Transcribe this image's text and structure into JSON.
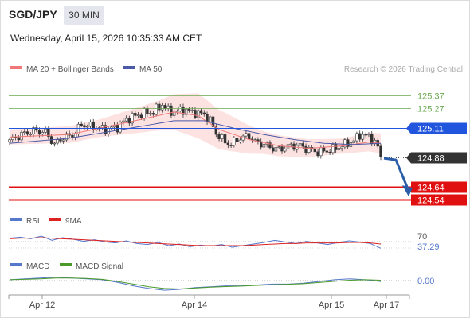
{
  "header": {
    "symbol": "SGD/JPY",
    "timeframe": "30 MIN",
    "datetime": "Wednesday, April 15, 2026 10:35:33 AM CET"
  },
  "legend": {
    "ma20_bb": "MA 20 + Bollinger Bands",
    "ma50": "MA 50",
    "credit": "Research © 2026 Trading Central"
  },
  "colors": {
    "up_candle": "#ffffff",
    "down_candle": "#333333",
    "ma20": "#f07878",
    "ma50": "#4a5aa8",
    "bollinger_fill": "#fde2e2",
    "resistance": "#6aa84f",
    "pivot": "#2255dd",
    "support": "#e01010",
    "current_price": "#333333",
    "rsi": "#5577cc",
    "rsi_9ma": "#dd2222",
    "macd": "#5577cc",
    "macd_signal": "#4a9a2a"
  },
  "chart_data": [
    {
      "type": "candlestick",
      "title": "SGD/JPY 30 MIN",
      "x_tick_labels": [
        "Apr 12",
        "Apr 14",
        "Apr 15",
        "Apr 17"
      ],
      "ylim": [
        124.47,
        125.5
      ],
      "levels": [
        {
          "name": "resistance_2",
          "value": 125.37,
          "label": "125.37",
          "kind": "resistance"
        },
        {
          "name": "resistance_1",
          "value": 125.27,
          "label": "125.27",
          "kind": "resistance"
        },
        {
          "name": "pivot",
          "value": 125.11,
          "label": "125.11",
          "kind": "pivot"
        },
        {
          "name": "current",
          "value": 124.88,
          "label": "124.88",
          "kind": "current"
        },
        {
          "name": "support_1",
          "value": 124.64,
          "label": "124.64",
          "kind": "support"
        },
        {
          "name": "support_2",
          "value": 124.54,
          "label": "124.54",
          "kind": "support"
        }
      ],
      "forecast_arrow": {
        "from": 124.87,
        "to": 124.59
      },
      "close_path": [
        [
          0,
          125.01
        ],
        [
          4,
          125.06
        ],
        [
          8,
          125.09
        ],
        [
          12,
          125.08
        ],
        [
          15,
          124.98
        ],
        [
          18,
          125.04
        ],
        [
          21,
          125.05
        ],
        [
          24,
          125.14
        ],
        [
          28,
          125.12
        ],
        [
          32,
          125.1
        ],
        [
          36,
          125.12
        ],
        [
          39,
          125.18
        ],
        [
          42,
          125.21
        ],
        [
          45,
          125.23
        ],
        [
          48,
          125.24
        ],
        [
          51,
          125.3
        ],
        [
          53,
          125.25
        ],
        [
          55,
          125.24
        ],
        [
          58,
          125.26
        ],
        [
          61,
          125.24
        ],
        [
          63,
          125.23
        ],
        [
          65,
          125.22
        ],
        [
          67,
          125.17
        ],
        [
          69,
          125.07
        ],
        [
          72,
          125.0
        ],
        [
          74,
          124.98
        ],
        [
          76,
          125.02
        ],
        [
          78,
          125.04
        ],
        [
          80,
          125.05
        ],
        [
          82,
          125.0
        ],
        [
          85,
          124.98
        ],
        [
          88,
          124.95
        ],
        [
          90,
          124.94
        ],
        [
          94,
          124.97
        ],
        [
          97,
          124.97
        ],
        [
          100,
          124.94
        ],
        [
          103,
          124.92
        ],
        [
          106,
          124.93
        ],
        [
          109,
          124.95
        ],
        [
          112,
          124.98
        ],
        [
          115,
          125.01
        ],
        [
          117,
          125.06
        ],
        [
          119,
          125.05
        ],
        [
          121,
          125.03
        ],
        [
          123,
          124.96
        ],
        [
          124,
          124.88
        ]
      ],
      "ma20_path": [
        [
          0,
          125.04
        ],
        [
          20,
          125.06
        ],
        [
          40,
          125.16
        ],
        [
          55,
          125.24
        ],
        [
          63,
          125.21
        ],
        [
          70,
          125.1
        ],
        [
          80,
          125.02
        ],
        [
          90,
          124.97
        ],
        [
          100,
          124.95
        ],
        [
          112,
          124.97
        ],
        [
          120,
          125.0
        ],
        [
          124,
          124.99
        ]
      ],
      "ma50_path": [
        [
          0,
          124.99
        ],
        [
          20,
          125.03
        ],
        [
          40,
          125.11
        ],
        [
          55,
          125.17
        ],
        [
          65,
          125.17
        ],
        [
          75,
          125.11
        ],
        [
          85,
          125.06
        ],
        [
          95,
          125.02
        ],
        [
          105,
          124.99
        ],
        [
          115,
          124.98
        ],
        [
          124,
          124.99
        ]
      ],
      "bollinger_width_path": [
        [
          0,
          0.06
        ],
        [
          30,
          0.07
        ],
        [
          50,
          0.12
        ],
        [
          63,
          0.18
        ],
        [
          72,
          0.15
        ],
        [
          85,
          0.09
        ],
        [
          110,
          0.06
        ],
        [
          124,
          0.08
        ]
      ]
    },
    {
      "type": "line",
      "title": "RSI",
      "legend": [
        "RSI",
        "9MA"
      ],
      "ylim": [
        0,
        100
      ],
      "ref_label": "70",
      "value_label": "37.29",
      "series": [
        {
          "name": "RSI",
          "values": [
            56,
            58,
            55,
            60,
            52,
            57,
            54,
            50,
            53,
            49,
            47,
            51,
            46,
            44,
            48,
            42,
            45,
            40,
            43,
            41,
            44,
            39,
            42,
            45,
            48,
            52,
            49,
            46,
            50,
            47,
            44,
            48,
            51,
            49,
            46,
            37
          ]
        },
        {
          "name": "9MA",
          "values": [
            55,
            56,
            56,
            57,
            56,
            55,
            54,
            53,
            52,
            51,
            50,
            49,
            48,
            47,
            46,
            45,
            44,
            43,
            42,
            42,
            42,
            42,
            42,
            43,
            44,
            45,
            46,
            46,
            47,
            47,
            47,
            47,
            48,
            48,
            47,
            45
          ]
        }
      ]
    },
    {
      "type": "line",
      "title": "MACD",
      "legend": [
        "MACD",
        "MACD Signal"
      ],
      "zero_label": "0.00",
      "series": [
        {
          "name": "MACD",
          "values": [
            0.01,
            0.02,
            0.03,
            0.04,
            0.03,
            0.02,
            0.01,
            -0.02,
            -0.06,
            -0.09,
            -0.11,
            -0.1,
            -0.08,
            -0.07,
            -0.06,
            -0.06,
            -0.05,
            -0.04,
            -0.04,
            -0.03,
            -0.01,
            0.01,
            0.02,
            0.01,
            -0.01
          ]
        },
        {
          "name": "MACD Signal",
          "values": [
            0.01,
            0.015,
            0.02,
            0.03,
            0.03,
            0.025,
            0.015,
            -0.01,
            -0.04,
            -0.07,
            -0.09,
            -0.095,
            -0.085,
            -0.075,
            -0.068,
            -0.062,
            -0.055,
            -0.048,
            -0.042,
            -0.035,
            -0.022,
            -0.008,
            0.005,
            0.01,
            0.005
          ]
        }
      ]
    }
  ]
}
